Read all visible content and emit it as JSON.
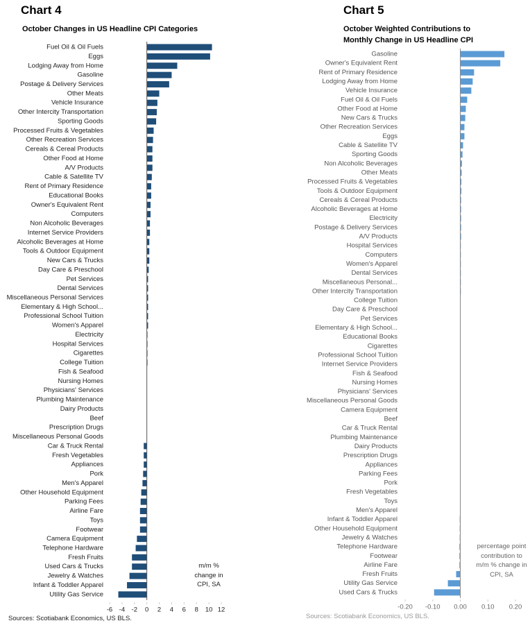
{
  "chart_data": [
    {
      "type": "bar",
      "orientation": "horizontal",
      "heading": "Chart 4",
      "title": "October Changes in US Headline CPI Categories",
      "annotation": "m/m % change in CPI, SA",
      "source": "Sources: Scotiabank Economics, US BLS.",
      "color": "#1f4e79",
      "xlim": [
        -6,
        12
      ],
      "xticks": [
        -6,
        -4,
        -2,
        0,
        2,
        4,
        6,
        8,
        10,
        12
      ],
      "categories": [
        "Fuel Oil & Oil Fuels",
        "Eggs",
        "Lodging Away from Home",
        "Gasoline",
        "Postage & Delivery Services",
        "Other Meats",
        "Vehicle Insurance",
        "Other Intercity Transportation",
        "Sporting Goods",
        "Processed Fruits & Vegetables",
        "Other Recreation Services",
        "Cereals & Cereal Products",
        "Other Food at Home",
        "A/V Products",
        "Cable & Satellite TV",
        "Rent of Primary Residence",
        "Educational Books",
        "Owner's Equivalent Rent",
        "Computers",
        "Non Alcoholic Beverages",
        "Internet Service Providers",
        "Alcoholic Beverages at Home",
        "Tools & Outdoor Equipment",
        "New Cars & Trucks",
        "Day Care & Preschool",
        "Pet Services",
        "Dental Services",
        "Miscellaneous Personal Services",
        "Elementary & High School...",
        "Professional School Tuition",
        "Women's Apparel",
        "Electricity",
        "Hospital Services",
        "Cigarettes",
        "College Tuition",
        "Fish & Seafood",
        "Nursing Homes",
        "Physicians' Services",
        "Plumbing Maintenance",
        "Dairy Products",
        "Beef",
        "Prescription Drugs",
        "Miscellaneous Personal Goods",
        "Car & Truck Rental",
        "Fresh Vegetables",
        "Appliances",
        "Pork",
        "Men's Apparel",
        "Other Household Equipment",
        "Parking Fees",
        "Airline Fare",
        "Toys",
        "Footwear",
        "Camera Equipment",
        "Telephone Hardware",
        "Fresh Fruits",
        "Used Cars & Trucks",
        "Jewelry & Watches",
        "Infant & Toddler Apparel",
        "Utility Gas Service"
      ],
      "values": [
        10.5,
        10.2,
        4.9,
        4.0,
        3.6,
        2.0,
        1.7,
        1.6,
        1.5,
        1.1,
        1.0,
        0.9,
        0.9,
        0.9,
        0.8,
        0.7,
        0.7,
        0.6,
        0.6,
        0.5,
        0.5,
        0.4,
        0.4,
        0.4,
        0.3,
        0.2,
        0.2,
        0.2,
        0.2,
        0.2,
        0.2,
        0.1,
        0.1,
        0.1,
        0.1,
        0.0,
        0.0,
        0.0,
        0.0,
        0.0,
        0.0,
        0.0,
        0.0,
        -0.5,
        -0.5,
        -0.5,
        -0.6,
        -0.7,
        -0.9,
        -1.0,
        -1.1,
        -1.1,
        -1.1,
        -1.6,
        -1.8,
        -2.4,
        -2.4,
        -2.8,
        -3.2,
        -4.6
      ]
    },
    {
      "type": "bar",
      "orientation": "horizontal",
      "heading": "Chart 5",
      "title": "October Weighted Contributions to Monthly Change in US Headline CPI",
      "annotation": "percentage point contribution to m/m % change in CPI, SA",
      "source": "Sources: Scotiabank Economics, US BLS.",
      "color": "#5b9bd5",
      "xlim": [
        -0.2,
        0.2
      ],
      "xticks": [
        {
          "value": -0.2,
          "label": "-0.20"
        },
        {
          "value": -0.1,
          "label": "-0.10"
        },
        {
          "value": 0,
          "label": "0.00"
        },
        {
          "value": 0.1,
          "label": "0.10"
        },
        {
          "value": 0.2,
          "label": "0.20"
        }
      ],
      "categories": [
        "Gasoline",
        "Owner's Equivalent Rent",
        "Rent of Primary Residence",
        "Lodging Away from Home",
        "Vehicle Insurance",
        "Fuel Oil & Oil Fuels",
        "Other Food at Home",
        "New Cars & Trucks",
        "Other Recreation Services",
        "Eggs",
        "Cable & Satellite TV",
        "Sporting Goods",
        "Non Alcoholic Beverages",
        "Other Meats",
        "Processed Fruits & Vegetables",
        "Tools & Outdoor Equipment",
        "Cereals & Cereal Products",
        "Alcoholic Beverages at Home",
        "Electricity",
        "Postage & Delivery Services",
        "A/V Products",
        "Hospital Services",
        "Computers",
        "Women's Apparel",
        "Dental Services",
        "Miscellaneous Personal...",
        "Other Intercity Transportation",
        "College Tuition",
        "Day Care & Preschool",
        "Pet Services",
        "Elementary & High School...",
        "Educational Books",
        "Cigarettes",
        "Professional School Tuition",
        "Internet Service Providers",
        "Fish & Seafood",
        "Nursing Homes",
        "Physicians' Services",
        "Miscellaneous Personal Goods",
        "Camera Equipment",
        "Beef",
        "Car & Truck Rental",
        "Plumbing Maintenance",
        "Dairy Products",
        "Prescription Drugs",
        "Appliances",
        "Parking Fees",
        "Pork",
        "Fresh Vegetables",
        "Toys",
        "Men's Apparel",
        "Infant & Toddler Apparel",
        "Other Household Equipment",
        "Jewelry & Watches",
        "Telephone Hardware",
        "Footwear",
        "Airline Fare",
        "Fresh Fruits",
        "Utility Gas Service",
        "Used Cars & Trucks"
      ],
      "values": [
        0.16,
        0.145,
        0.05,
        0.045,
        0.04,
        0.025,
        0.02,
        0.018,
        0.015,
        0.015,
        0.01,
        0.008,
        0.006,
        0.005,
        0.004,
        0.004,
        0.003,
        0.003,
        0.003,
        0.003,
        0.003,
        0.002,
        0.002,
        0.002,
        0.002,
        0.002,
        0.002,
        0.001,
        0.001,
        0.001,
        0.001,
        0.001,
        0.001,
        0.001,
        0.001,
        0,
        0,
        0,
        0,
        0,
        0,
        0,
        0,
        0,
        0,
        0,
        0,
        -0.001,
        -0.001,
        -0.001,
        -0.001,
        -0.002,
        -0.002,
        -0.002,
        -0.003,
        -0.003,
        -0.003,
        -0.015,
        -0.045,
        -0.095
      ]
    }
  ]
}
